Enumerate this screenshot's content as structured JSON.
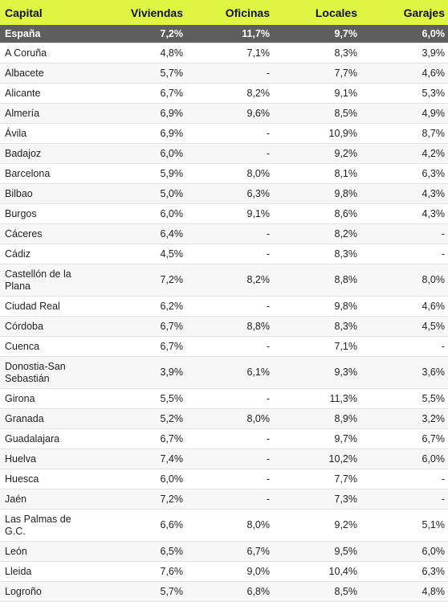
{
  "headers": [
    "Capital",
    "Viviendas",
    "Oficinas",
    "Locales",
    "Garajes"
  ],
  "total": {
    "name": "España",
    "values": [
      "7,2%",
      "11,7%",
      "9,7%",
      "6,0%"
    ]
  },
  "rows": [
    {
      "name": "A Coruña",
      "values": [
        "4,8%",
        "7,1%",
        "8,3%",
        "3,9%"
      ]
    },
    {
      "name": "Albacete",
      "values": [
        "5,7%",
        "-",
        "7,7%",
        "4,6%"
      ]
    },
    {
      "name": "Alicante",
      "values": [
        "6,7%",
        "8,2%",
        "9,1%",
        "5,3%"
      ]
    },
    {
      "name": "Almería",
      "values": [
        "6,9%",
        "9,6%",
        "8,5%",
        "4,9%"
      ]
    },
    {
      "name": "Ávila",
      "values": [
        "6,9%",
        "-",
        "10,9%",
        "8,7%"
      ]
    },
    {
      "name": "Badajoz",
      "values": [
        "6,0%",
        "-",
        "9,2%",
        "4,2%"
      ]
    },
    {
      "name": "Barcelona",
      "values": [
        "5,9%",
        "8,0%",
        "8,1%",
        "6,3%"
      ]
    },
    {
      "name": "Bilbao",
      "values": [
        "5,0%",
        "6,3%",
        "9,8%",
        "4,3%"
      ]
    },
    {
      "name": "Burgos",
      "values": [
        "6,0%",
        "9,1%",
        "8,6%",
        "4,3%"
      ]
    },
    {
      "name": "Cáceres",
      "values": [
        "6,4%",
        "-",
        "8,2%",
        "-"
      ]
    },
    {
      "name": "Cádiz",
      "values": [
        "4,5%",
        "-",
        "8,3%",
        "-"
      ]
    },
    {
      "name": "Castellón de la Plana",
      "values": [
        "7,2%",
        "8,2%",
        "8,8%",
        "8,0%"
      ]
    },
    {
      "name": "Ciudad Real",
      "values": [
        "6,2%",
        "-",
        "9,8%",
        "4,6%"
      ]
    },
    {
      "name": "Córdoba",
      "values": [
        "6,7%",
        "8,8%",
        "8,3%",
        "4,5%"
      ]
    },
    {
      "name": "Cuenca",
      "values": [
        "6,7%",
        "-",
        "7,1%",
        "-"
      ]
    },
    {
      "name": "Donostia-San Sebastián",
      "values": [
        "3,9%",
        "6,1%",
        "9,3%",
        "3,6%"
      ]
    },
    {
      "name": "Girona",
      "values": [
        "5,5%",
        "-",
        "11,3%",
        "5,5%"
      ]
    },
    {
      "name": "Granada",
      "values": [
        "5,2%",
        "8,0%",
        "8,9%",
        "3,2%"
      ]
    },
    {
      "name": "Guadalajara",
      "values": [
        "6,7%",
        "-",
        "9,7%",
        "6,7%"
      ]
    },
    {
      "name": "Huelva",
      "values": [
        "7,4%",
        "-",
        "10,2%",
        "6,0%"
      ]
    },
    {
      "name": "Huesca",
      "values": [
        "6,0%",
        "-",
        "7,7%",
        "-"
      ]
    },
    {
      "name": "Jaén",
      "values": [
        "7,2%",
        "-",
        "7,3%",
        "-"
      ]
    },
    {
      "name": "Las Palmas de G.C.",
      "values": [
        "6,6%",
        "8,0%",
        "9,2%",
        "5,1%"
      ]
    },
    {
      "name": "León",
      "values": [
        "6,5%",
        "6,7%",
        "9,5%",
        "6,0%"
      ]
    },
    {
      "name": "Lleida",
      "values": [
        "7,6%",
        "9,0%",
        "10,4%",
        "6,3%"
      ]
    },
    {
      "name": "Logroño",
      "values": [
        "5,7%",
        "6,8%",
        "8,5%",
        "4,8%"
      ]
    }
  ]
}
